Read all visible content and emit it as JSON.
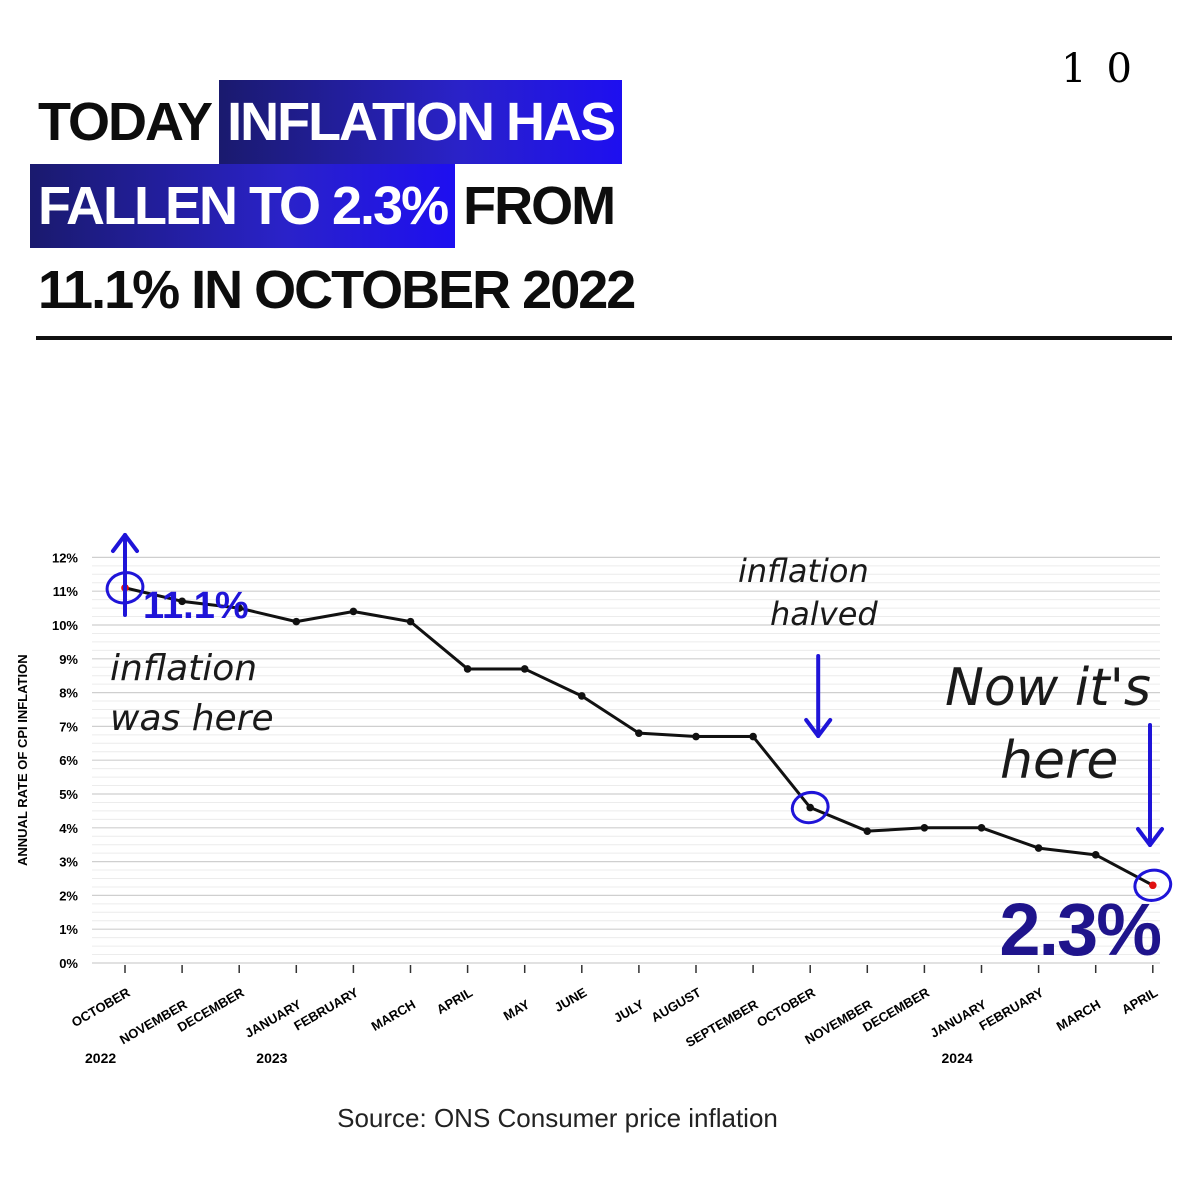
{
  "logo": "10",
  "headline": {
    "lines": [
      [
        {
          "text": "TODAY",
          "style": "dark"
        },
        {
          "text": "INFLATION HAS",
          "style": "blue"
        }
      ],
      [
        {
          "text": "FALLEN TO 2.3%",
          "style": "blue"
        },
        {
          "text": "FROM",
          "style": "dark"
        }
      ],
      [
        {
          "text": "11.1% IN OCTOBER 2022",
          "style": "dark"
        }
      ]
    ]
  },
  "source": "Source: ONS Consumer price inflation",
  "colors": {
    "accent_blue": "#1f14d8",
    "line": "#111111",
    "highlight_point": "#e01010"
  },
  "chart_data": {
    "type": "line",
    "title": "",
    "ylabel": "ANNUAL RATE OF CPI INFLATION",
    "xlabel": "",
    "ylim": [
      0,
      12
    ],
    "yticks": [
      0,
      1,
      2,
      3,
      4,
      5,
      6,
      7,
      8,
      9,
      10,
      11,
      12
    ],
    "ytick_labels": [
      "0%",
      "1%",
      "2%",
      "3%",
      "4%",
      "5%",
      "6%",
      "7%",
      "8%",
      "9%",
      "10%",
      "11%",
      "12%"
    ],
    "categories": [
      "OCTOBER",
      "NOVEMBER",
      "DECEMBER",
      "JANUARY",
      "FEBRUARY",
      "MARCH",
      "APRIL",
      "MAY",
      "JUNE",
      "JULY",
      "AUGUST",
      "SEPTEMBER",
      "OCTOBER",
      "NOVEMBER",
      "DECEMBER",
      "JANUARY",
      "FEBRUARY",
      "MARCH",
      "APRIL"
    ],
    "values": [
      11.1,
      10.7,
      10.5,
      10.1,
      10.4,
      10.1,
      8.7,
      8.7,
      7.9,
      6.8,
      6.7,
      6.7,
      4.6,
      3.9,
      4.0,
      4.0,
      3.4,
      3.2,
      2.3
    ],
    "years": [
      {
        "label": "2022",
        "index": 0
      },
      {
        "label": "2023",
        "index": 3
      },
      {
        "label": "2024",
        "index": 15
      }
    ],
    "highlighted_indices": [
      0,
      18
    ],
    "circled_indices": [
      0,
      12,
      18
    ],
    "annotations": {
      "start_value": "11.1%",
      "start_note": [
        "inflation",
        "was here"
      ],
      "mid_note": [
        "inflation",
        "halved"
      ],
      "end_note": [
        "Now it's",
        "here"
      ],
      "end_value": "2.3%"
    }
  }
}
